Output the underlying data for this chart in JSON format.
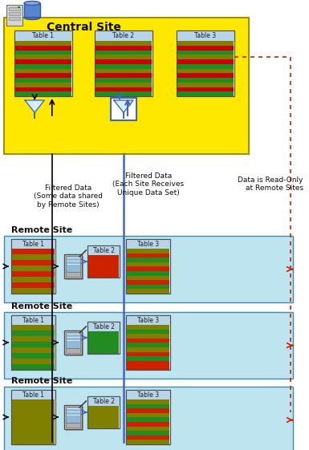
{
  "title": "Central Site",
  "remote_site_label": "Remote Site",
  "bg_yellow": "#FFE800",
  "bg_light_blue": "#BEE4F0",
  "table_header_color": "#B8D4E8",
  "table_border": "#505050",
  "filter_box_color": "#4466BB",
  "blue_line": "#4466BB",
  "black_line": "#000000",
  "red_dashed": "#CC2200",
  "ann1": "Filtered Data\n(Some data shared\nby Remote Sites)",
  "ann2": "Filtered Data\n(Each Site Receives\nUnique Data Set)",
  "ann3": "Data is Read-Only\nat Remote Sites",
  "row_colors_central": [
    "#808000",
    "#CC0000",
    "#228B22",
    "#808000",
    "#CC0000",
    "#228B22",
    "#808000",
    "#CC0000",
    "#228B22",
    "#808000",
    "#CC0000",
    "#228B22"
  ],
  "row_colors_rs1_t1": [
    "#CC2200",
    "#808000",
    "#CC2200",
    "#808000",
    "#CC2200",
    "#808000",
    "#CC2200",
    "#808000"
  ],
  "row_colors_rs1_t2": [
    "#CC2200",
    "#CC2200",
    "#CC2200",
    "#CC2200"
  ],
  "row_colors_rs1_t3": [
    "#808000",
    "#CC2200",
    "#228B22",
    "#808000",
    "#CC2200",
    "#228B22",
    "#808000",
    "#CC2200",
    "#228B22",
    "#808000"
  ],
  "row_colors_rs2_t1": [
    "#808000",
    "#228B22",
    "#808000",
    "#228B22",
    "#808000",
    "#228B22",
    "#808000",
    "#228B22"
  ],
  "row_colors_rs2_t2": [
    "#228B22",
    "#228B22",
    "#228B22",
    "#228B22"
  ],
  "row_colors_rs2_t3": [
    "#808000",
    "#228B22",
    "#808000",
    "#CC2200",
    "#228B22",
    "#808000",
    "#CC2200",
    "#228B22",
    "#CC2200",
    "#CC2200"
  ],
  "row_colors_rs3_t1": [
    "#808000",
    "#808000",
    "#808000",
    "#808000",
    "#808000",
    "#808000",
    "#808000",
    "#808000"
  ],
  "row_colors_rs3_t2": [
    "#808000",
    "#808000",
    "#808000",
    "#808000"
  ],
  "row_colors_rs3_t3": [
    "#808000",
    "#228B22",
    "#CC2200",
    "#808000",
    "#228B22",
    "#CC2200",
    "#808000",
    "#228B22",
    "#CC2200",
    "#808000"
  ]
}
